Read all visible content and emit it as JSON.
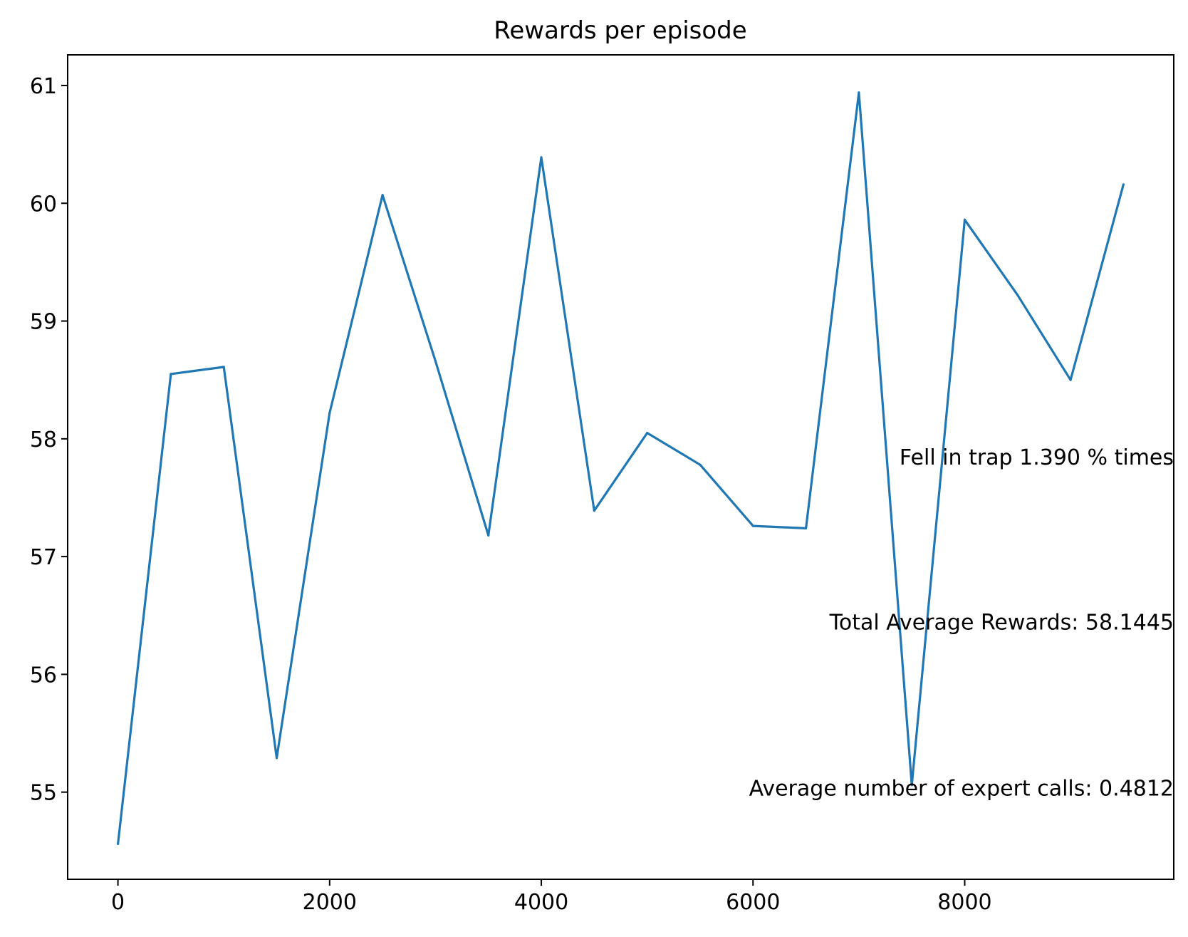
{
  "chart_data": {
    "type": "line",
    "title": "Rewards per episode",
    "xlabel": "",
    "ylabel": "",
    "xlim": [
      -475,
      9975
    ],
    "ylim": [
      54.26,
      61.26
    ],
    "x_ticks": [
      0,
      2000,
      4000,
      6000,
      8000
    ],
    "x_tick_labels": [
      "0",
      "2000",
      "4000",
      "6000",
      "8000"
    ],
    "y_ticks": [
      55,
      56,
      57,
      58,
      59,
      60,
      61
    ],
    "y_tick_labels": [
      "55",
      "56",
      "57",
      "58",
      "59",
      "60",
      "61"
    ],
    "grid": false,
    "series": [
      {
        "color": "#1f77b4",
        "x": [
          0,
          500,
          1000,
          1500,
          2000,
          2500,
          3000,
          3500,
          4000,
          4500,
          5000,
          5500,
          6000,
          6500,
          7000,
          7500,
          8000,
          8500,
          9000,
          9500
        ],
        "y": [
          54.56,
          58.55,
          58.61,
          55.29,
          58.22,
          60.07,
          58.66,
          57.18,
          60.39,
          57.39,
          58.05,
          57.78,
          57.26,
          57.24,
          60.94,
          55.06,
          59.86,
          59.22,
          58.5,
          60.16
        ]
      }
    ],
    "annotations": [
      {
        "text": "Fell in trap 1.390 % times",
        "x": 9975,
        "y": 57.78
      },
      {
        "text": "Total Average Rewards: 58.1445",
        "x": 9975,
        "y": 56.38
      },
      {
        "text": "Average number of expert calls: 0.4812",
        "x": 9975,
        "y": 54.97
      }
    ]
  }
}
